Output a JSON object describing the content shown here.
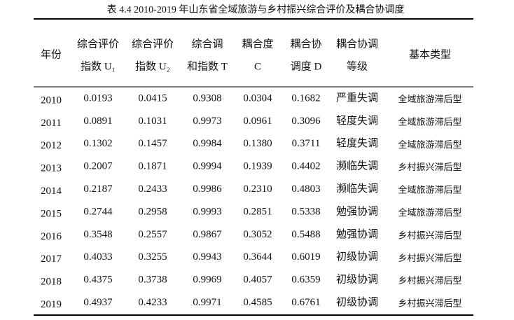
{
  "title": "表 4.4    2010-2019 年山东省全域旅游与乡村振兴综合评价及耦合协调度",
  "table": {
    "header": [
      [
        "年份"
      ],
      [
        "综合评价",
        "指数 U₁"
      ],
      [
        "综合评价",
        "指数 U₂"
      ],
      [
        "综合调",
        "和指数 T"
      ],
      [
        "耦合度",
        "C"
      ],
      [
        "耦合协",
        "调度 D"
      ],
      [
        "耦合协调",
        "等级"
      ],
      [
        "基本类型"
      ]
    ],
    "rows": [
      [
        "2010",
        "0.0193",
        "0.0415",
        "0.9308",
        "0.0304",
        "0.1682",
        "严重失调",
        "全域旅游滞后型"
      ],
      [
        "2011",
        "0.0891",
        "0.1031",
        "0.9973",
        "0.0961",
        "0.3096",
        "轻度失调",
        "全域旅游滞后型"
      ],
      [
        "2012",
        "0.1302",
        "0.1457",
        "0.9984",
        "0.1380",
        "0.3711",
        "轻度失调",
        "全域旅游滞后型"
      ],
      [
        "2013",
        "0.2007",
        "0.1871",
        "0.9994",
        "0.1939",
        "0.4402",
        "濒临失调",
        "乡村振兴滞后型"
      ],
      [
        "2014",
        "0.2187",
        "0.2433",
        "0.9986",
        "0.2310",
        "0.4803",
        "濒临失调",
        "全域旅游滞后型"
      ],
      [
        "2015",
        "0.2744",
        "0.2958",
        "0.9993",
        "0.2851",
        "0.5338",
        "勉强协调",
        "全域旅游滞后型"
      ],
      [
        "2016",
        "0.3548",
        "0.2557",
        "0.9867",
        "0.3052",
        "0.5488",
        "勉强协调",
        "乡村振兴滞后型"
      ],
      [
        "2017",
        "0.4033",
        "0.3255",
        "0.9943",
        "0.3644",
        "0.6019",
        "初级协调",
        "乡村振兴滞后型"
      ],
      [
        "2018",
        "0.4375",
        "0.3738",
        "0.9969",
        "0.4057",
        "0.6359",
        "初级协调",
        "乡村振兴滞后型"
      ],
      [
        "2019",
        "0.4937",
        "0.4233",
        "0.9971",
        "0.4585",
        "0.6761",
        "初级协调",
        "乡村振兴滞后型"
      ]
    ]
  }
}
